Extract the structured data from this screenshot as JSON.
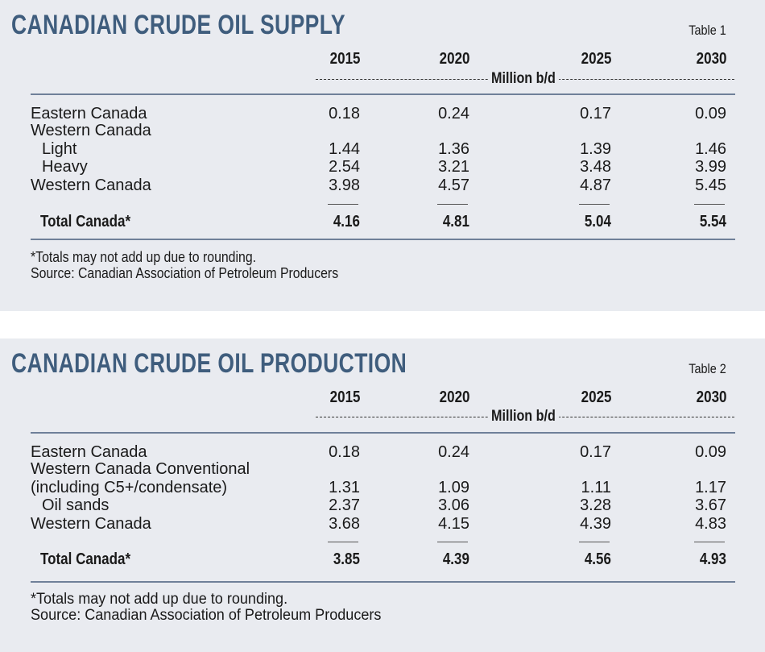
{
  "tables": [
    {
      "title": "CANADIAN CRUDE OIL SUPPLY",
      "label": "Table 1",
      "years": [
        "2015",
        "2020",
        "2025",
        "2030"
      ],
      "unit": "Million b/d",
      "rows": [
        {
          "label": "Eastern Canada",
          "values": [
            "0.18",
            "0.24",
            "0.17",
            "0.09"
          ]
        },
        {
          "label": "Western Canada",
          "values": []
        },
        {
          "label": " Light",
          "values": [
            "1.44",
            "1.36",
            "1.39",
            "1.46"
          ]
        },
        {
          "label": " Heavy",
          "values": [
            "2.54",
            "3.21",
            "3.48",
            "3.99"
          ]
        },
        {
          "label": "Western Canada",
          "values": [
            "3.98",
            "4.57",
            "4.87",
            "5.45"
          ]
        }
      ],
      "total": {
        "label": "Total Canada*",
        "values": [
          "4.16",
          "4.81",
          "5.04",
          "5.54"
        ]
      },
      "footnotes": [
        "*Totals may not add up due to rounding.",
        "Source: Canadian Association of Petroleum Producers"
      ]
    },
    {
      "title": "CANADIAN CRUDE OIL PRODUCTION",
      "label": "Table 2",
      "years": [
        "2015",
        "2020",
        "2025",
        "2030"
      ],
      "unit": "Million b/d",
      "rows": [
        {
          "label": "Eastern Canada",
          "values": [
            "0.18",
            "0.24",
            "0.17",
            "0.09"
          ]
        },
        {
          "label": "Western Canada Conventional",
          "values": []
        },
        {
          "label": "(including C5+/condensate)",
          "values": [
            "1.31",
            "1.09",
            "1.11",
            "1.17"
          ]
        },
        {
          "label": " Oil sands",
          "values": [
            "2.37",
            "3.06",
            "3.28",
            "3.67"
          ]
        },
        {
          "label": "Western Canada",
          "values": [
            "3.68",
            "4.15",
            "4.39",
            "4.83"
          ]
        }
      ],
      "total": {
        "label": "Total Canada*",
        "values": [
          "3.85",
          "4.39",
          "4.56",
          "4.93"
        ]
      },
      "footnotes": [
        "*Totals may not add up due to rounding.",
        "Source: Canadian Association of Petroleum Producers"
      ]
    }
  ],
  "colors": {
    "title": "#3f5d7d",
    "background": "#e9ebf0",
    "rule": "#6f8099"
  }
}
